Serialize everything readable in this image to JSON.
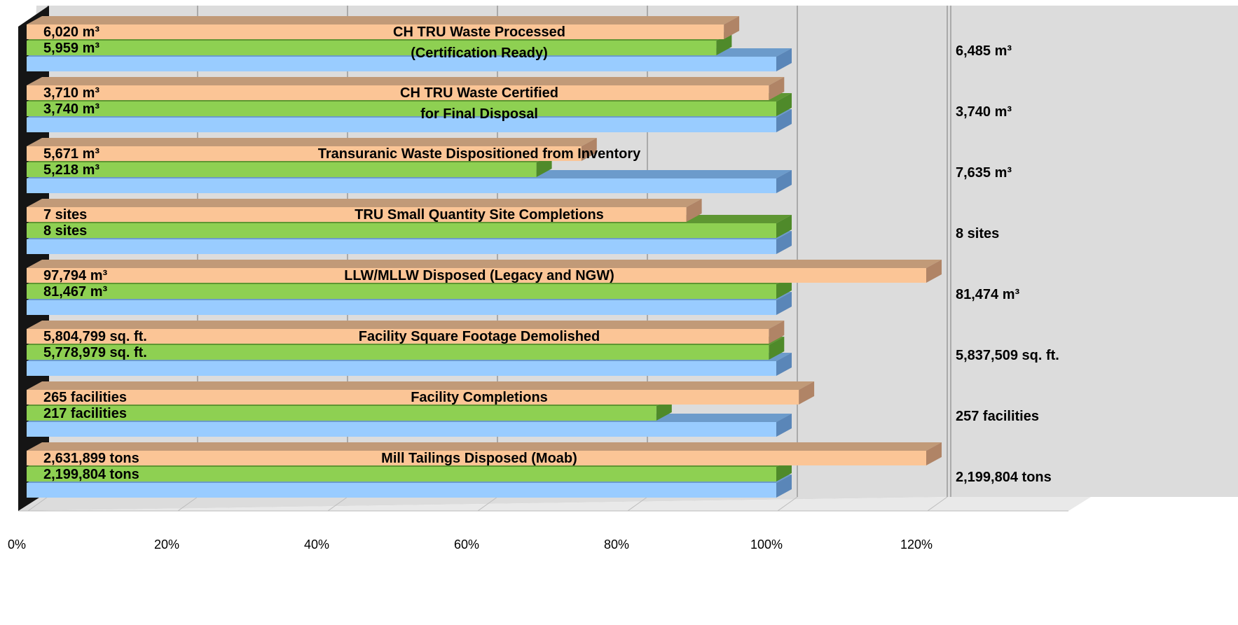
{
  "chart_data": {
    "type": "bar",
    "orientation": "horizontal",
    "value_unit": "percent of target",
    "xlim": [
      0,
      120
    ],
    "x_ticks": [
      "0%",
      "20%",
      "40%",
      "60%",
      "80%",
      "100%",
      "120%"
    ],
    "grid": true,
    "legend": "none",
    "categories": [
      {
        "title_lines": [
          "CH TRU Waste Processed",
          "(Certification Ready)"
        ],
        "bars": [
          {
            "series": "orange",
            "pct": 93,
            "label": "6,020 m³"
          },
          {
            "series": "green",
            "pct": 92,
            "label": "5,959 m³"
          },
          {
            "series": "blue",
            "pct": 100
          }
        ],
        "target_label": "6,485 m³"
      },
      {
        "title_lines": [
          "CH TRU Waste Certified",
          "for Final Disposal"
        ],
        "bars": [
          {
            "series": "orange",
            "pct": 99,
            "label": "3,710 m³"
          },
          {
            "series": "green",
            "pct": 100,
            "label": "3,740 m³"
          },
          {
            "series": "blue",
            "pct": 100
          }
        ],
        "target_label": "3,740 m³"
      },
      {
        "title_lines": [
          "Transuranic Waste Dispositioned from Inventory"
        ],
        "bars": [
          {
            "series": "orange",
            "pct": 74,
            "label": "5,671 m³"
          },
          {
            "series": "green",
            "pct": 68,
            "label": "5,218 m³"
          },
          {
            "series": "blue",
            "pct": 100
          }
        ],
        "target_label": "7,635 m³"
      },
      {
        "title_lines": [
          "TRU Small Quantity Site Completions"
        ],
        "bars": [
          {
            "series": "orange",
            "pct": 88,
            "label": "7 sites"
          },
          {
            "series": "green",
            "pct": 100,
            "label": "8 sites"
          },
          {
            "series": "blue",
            "pct": 100
          }
        ],
        "target_label": "8 sites"
      },
      {
        "title_lines": [
          "LLW/MLLW Disposed (Legacy and NGW)"
        ],
        "bars": [
          {
            "series": "orange",
            "pct": 120,
            "label": "97,794 m³"
          },
          {
            "series": "green",
            "pct": 100,
            "label": "81,467 m³"
          },
          {
            "series": "blue",
            "pct": 100
          }
        ],
        "target_label": "81,474 m³"
      },
      {
        "title_lines": [
          "Facility Square Footage Demolished"
        ],
        "bars": [
          {
            "series": "orange",
            "pct": 99,
            "label": "5,804,799 sq. ft."
          },
          {
            "series": "green",
            "pct": 99,
            "label": "5,778,979 sq. ft."
          },
          {
            "series": "blue",
            "pct": 100
          }
        ],
        "target_label": "5,837,509 sq. ft."
      },
      {
        "title_lines": [
          "Facility Completions"
        ],
        "bars": [
          {
            "series": "orange",
            "pct": 103,
            "label": "265 facilities"
          },
          {
            "series": "green",
            "pct": 84,
            "label": "217 facilities"
          },
          {
            "series": "blue",
            "pct": 100
          }
        ],
        "target_label": "257 facilities"
      },
      {
        "title_lines": [
          "Mill Tailings Disposed (Moab)"
        ],
        "bars": [
          {
            "series": "orange",
            "pct": 120,
            "label": "2,631,899 tons"
          },
          {
            "series": "green",
            "pct": 100,
            "label": "2,199,804 tons"
          },
          {
            "series": "blue",
            "pct": 100
          }
        ],
        "target_label": "2,199,804 tons"
      }
    ],
    "colors": {
      "orange_face": "#FBC596",
      "orange_top": "#C19A78",
      "orange_side": "#B08466",
      "green_face": "#8ED052",
      "green_top": "#5E9632",
      "green_side": "#4F8A2A",
      "blue_face": "#99CCFF",
      "blue_top": "#6C9BCB",
      "blue_side": "#5A86B8",
      "plot_bg": "#DCDCDC",
      "grid": "#9A9A9A",
      "left_wall": "#151515",
      "text": "#000000"
    }
  }
}
